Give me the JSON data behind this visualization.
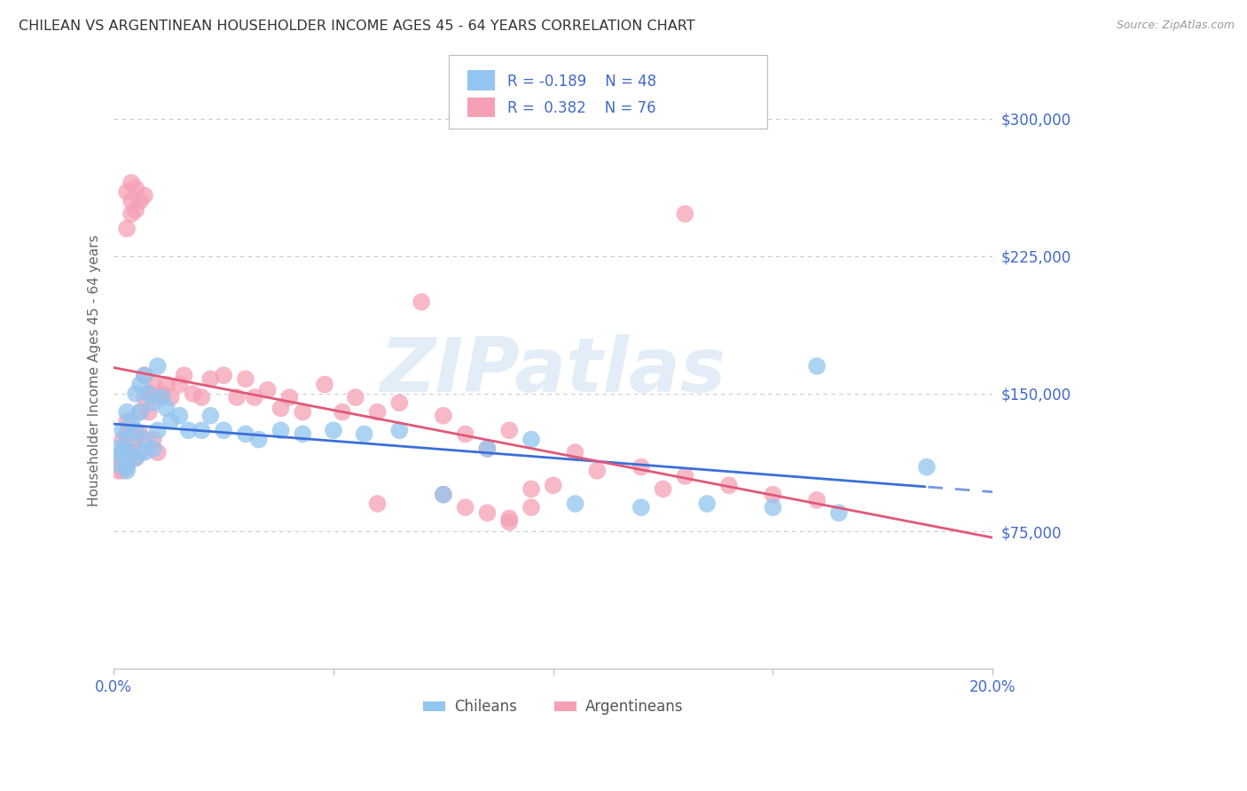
{
  "title": "CHILEAN VS ARGENTINEAN HOUSEHOLDER INCOME AGES 45 - 64 YEARS CORRELATION CHART",
  "source": "Source: ZipAtlas.com",
  "ylabel": "Householder Income Ages 45 - 64 years",
  "xlim": [
    0.0,
    0.2
  ],
  "ylim": [
    0,
    325000
  ],
  "yticks": [
    0,
    75000,
    150000,
    225000,
    300000
  ],
  "ytick_labels": [
    "",
    "$75,000",
    "$150,000",
    "$225,000",
    "$300,000"
  ],
  "xticks": [
    0.0,
    0.05,
    0.1,
    0.15,
    0.2
  ],
  "xtick_labels": [
    "0.0%",
    "",
    "",
    "",
    "20.0%"
  ],
  "watermark": "ZIPatlas",
  "chilean_color": "#92c5f0",
  "argentinean_color": "#f5a0b5",
  "chilean_line_color": "#3a6fd8",
  "argentinean_line_color": "#e05878",
  "background_color": "#ffffff",
  "grid_color": "#cccccc",
  "label_color": "#4169CD",
  "legend_text_color": "#4169CD",
  "chileans_x": [
    0.001,
    0.001,
    0.002,
    0.002,
    0.003,
    0.003,
    0.003,
    0.004,
    0.004,
    0.005,
    0.005,
    0.006,
    0.006,
    0.007,
    0.007,
    0.008,
    0.009,
    0.01,
    0.01,
    0.011,
    0.012,
    0.013,
    0.015,
    0.017,
    0.02,
    0.022,
    0.025,
    0.03,
    0.033,
    0.038,
    0.043,
    0.05,
    0.057,
    0.065,
    0.075,
    0.085,
    0.095,
    0.105,
    0.12,
    0.135,
    0.15,
    0.165,
    0.003,
    0.005,
    0.007,
    0.009,
    0.16,
    0.185
  ],
  "chileans_y": [
    120000,
    112000,
    130000,
    118000,
    140000,
    125000,
    110000,
    135000,
    118000,
    150000,
    130000,
    155000,
    140000,
    160000,
    125000,
    150000,
    145000,
    165000,
    130000,
    148000,
    142000,
    135000,
    138000,
    130000,
    130000,
    138000,
    130000,
    128000,
    125000,
    130000,
    128000,
    130000,
    128000,
    130000,
    95000,
    120000,
    125000,
    90000,
    88000,
    90000,
    88000,
    85000,
    108000,
    115000,
    118000,
    120000,
    165000,
    110000
  ],
  "argentineans_x": [
    0.001,
    0.001,
    0.002,
    0.002,
    0.002,
    0.003,
    0.003,
    0.003,
    0.004,
    0.004,
    0.005,
    0.005,
    0.006,
    0.006,
    0.006,
    0.007,
    0.007,
    0.008,
    0.008,
    0.009,
    0.009,
    0.01,
    0.01,
    0.011,
    0.012,
    0.013,
    0.015,
    0.016,
    0.018,
    0.02,
    0.022,
    0.025,
    0.028,
    0.03,
    0.032,
    0.035,
    0.038,
    0.04,
    0.043,
    0.048,
    0.052,
    0.055,
    0.06,
    0.065,
    0.07,
    0.075,
    0.08,
    0.085,
    0.09,
    0.095,
    0.1,
    0.105,
    0.11,
    0.12,
    0.125,
    0.13,
    0.14,
    0.15,
    0.16,
    0.003,
    0.004,
    0.005,
    0.006,
    0.007,
    0.003,
    0.004,
    0.004,
    0.005,
    0.13,
    0.09,
    0.095,
    0.06,
    0.075,
    0.08,
    0.085,
    0.09
  ],
  "argentineans_y": [
    115000,
    108000,
    125000,
    118000,
    108000,
    135000,
    128000,
    112000,
    130000,
    118000,
    125000,
    115000,
    140000,
    128000,
    118000,
    160000,
    148000,
    150000,
    140000,
    155000,
    125000,
    148000,
    118000,
    150000,
    155000,
    148000,
    155000,
    160000,
    150000,
    148000,
    158000,
    160000,
    148000,
    158000,
    148000,
    152000,
    142000,
    148000,
    140000,
    155000,
    140000,
    148000,
    140000,
    145000,
    200000,
    138000,
    128000,
    120000,
    130000,
    98000,
    100000,
    118000,
    108000,
    110000,
    98000,
    105000,
    100000,
    95000,
    92000,
    260000,
    265000,
    262000,
    255000,
    258000,
    240000,
    248000,
    255000,
    250000,
    248000,
    82000,
    88000,
    90000,
    95000,
    88000,
    85000,
    80000
  ]
}
